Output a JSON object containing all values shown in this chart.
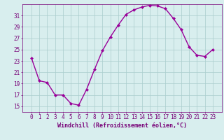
{
  "x": [
    0,
    1,
    2,
    3,
    4,
    5,
    6,
    7,
    8,
    9,
    10,
    11,
    12,
    13,
    14,
    15,
    16,
    17,
    18,
    19,
    20,
    21,
    22,
    23
  ],
  "y": [
    23.5,
    19.5,
    19.2,
    17.0,
    17.0,
    15.5,
    15.2,
    18.0,
    21.5,
    24.8,
    27.2,
    29.3,
    31.2,
    32.0,
    32.5,
    32.8,
    32.7,
    32.2,
    30.5,
    28.5,
    25.5,
    24.0,
    23.8,
    25.0
  ],
  "line_color": "#990099",
  "marker": "D",
  "marker_size": 2,
  "bg_color": "#d8eeee",
  "grid_color": "#aacccc",
  "xlabel": "Windchill (Refroidissement éolien,°C)",
  "xlabel_fontsize": 6,
  "tick_fontsize": 5.5,
  "ylim": [
    14,
    33
  ],
  "yticks": [
    15,
    17,
    19,
    21,
    23,
    25,
    27,
    29,
    31
  ],
  "xticks": [
    0,
    1,
    2,
    3,
    4,
    5,
    6,
    7,
    8,
    9,
    10,
    11,
    12,
    13,
    14,
    15,
    16,
    17,
    18,
    19,
    20,
    21,
    22,
    23
  ],
  "tick_color": "#770077",
  "axis_color": "#770077",
  "label_color": "#770077",
  "linewidth": 1.0
}
